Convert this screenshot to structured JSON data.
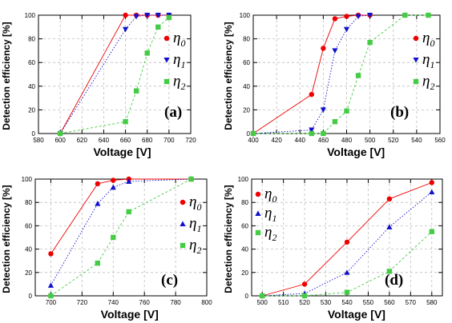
{
  "chart_data": [
    {
      "type": "line",
      "panel_label": "(a)",
      "xlabel": "Voltage  [V]",
      "ylabel": "Detection efficiency  [%]",
      "xlim": [
        580,
        720
      ],
      "ylim": [
        0,
        100
      ],
      "xticks": [
        "580",
        "600",
        "620",
        "640",
        "660",
        "680",
        "700",
        "720"
      ],
      "yticks": [
        "0",
        "20",
        "40",
        "60",
        "80",
        "100"
      ],
      "legend": {
        "position": "right",
        "entries": [
          {
            "symbol": "η",
            "sub": "0"
          },
          {
            "symbol": "η",
            "sub": "1"
          },
          {
            "symbol": "η",
            "sub": "2"
          }
        ]
      },
      "series": [
        {
          "color": "#ee0000",
          "marker": "circle",
          "line": "solid",
          "x": [
            600,
            660,
            670,
            680,
            690,
            700
          ],
          "y": [
            0,
            100,
            100,
            100,
            100,
            100
          ]
        },
        {
          "color": "#1111cc",
          "marker": "triangle-down",
          "line": "dotted",
          "x": [
            600,
            660,
            670,
            680,
            690,
            700
          ],
          "y": [
            0,
            88,
            99,
            100,
            100,
            100
          ]
        },
        {
          "color": "#44cc44",
          "marker": "square",
          "line": "dashed",
          "x": [
            600,
            660,
            670,
            680,
            690,
            700
          ],
          "y": [
            0,
            10,
            36,
            68,
            90,
            98
          ]
        }
      ]
    },
    {
      "type": "line",
      "panel_label": "(b)",
      "xlabel": "Voltage  [V]",
      "ylabel": "Detection efficiency  [%]",
      "xlim": [
        400,
        560
      ],
      "ylim": [
        0,
        100
      ],
      "xticks": [
        "400",
        "420",
        "440",
        "460",
        "480",
        "500",
        "520",
        "540",
        "560"
      ],
      "yticks": [
        "0",
        "20",
        "40",
        "60",
        "80",
        "100"
      ],
      "legend": {
        "position": "right",
        "entries": [
          {
            "symbol": "η",
            "sub": "0"
          },
          {
            "symbol": "η",
            "sub": "1"
          },
          {
            "symbol": "η",
            "sub": "2"
          }
        ]
      },
      "series": [
        {
          "color": "#ee0000",
          "marker": "circle",
          "line": "solid",
          "x": [
            400,
            450,
            460,
            470,
            480,
            490,
            500
          ],
          "y": [
            0,
            33,
            72,
            97,
            99,
            100,
            100
          ]
        },
        {
          "color": "#1111cc",
          "marker": "triangle-down",
          "line": "dotted",
          "x": [
            400,
            450,
            460,
            470,
            480,
            490,
            500
          ],
          "y": [
            0,
            3,
            20,
            70,
            88,
            99,
            100
          ]
        },
        {
          "color": "#44cc44",
          "marker": "square",
          "line": "dashed",
          "x": [
            400,
            450,
            460,
            470,
            480,
            490,
            500,
            530,
            550
          ],
          "y": [
            0,
            0,
            0,
            10,
            19,
            49,
            77,
            100,
            100
          ]
        }
      ]
    },
    {
      "type": "line",
      "panel_label": "(c)",
      "xlabel": "Voltage  [V]",
      "ylabel": "Detection efficiency  [%]",
      "xlim": [
        690,
        800
      ],
      "ylim": [
        0,
        100
      ],
      "xticks": [
        "700",
        "720",
        "740",
        "760",
        "780",
        "800"
      ],
      "yticks": [
        "0",
        "20",
        "40",
        "60",
        "80",
        "100"
      ],
      "legend": {
        "position": "right",
        "entries": [
          {
            "symbol": "η",
            "sub": "0"
          },
          {
            "symbol": "η",
            "sub": "1"
          },
          {
            "symbol": "η",
            "sub": "2"
          }
        ]
      },
      "series": [
        {
          "color": "#ee0000",
          "marker": "circle",
          "line": "solid",
          "x": [
            700,
            730,
            740,
            750,
            790
          ],
          "y": [
            36,
            96,
            99,
            100,
            100
          ]
        },
        {
          "color": "#1111cc",
          "marker": "triangle-up",
          "line": "dotted",
          "x": [
            700,
            730,
            740,
            750,
            790
          ],
          "y": [
            9,
            79,
            93,
            98,
            100
          ]
        },
        {
          "color": "#44cc44",
          "marker": "square",
          "line": "dashed",
          "x": [
            700,
            730,
            740,
            750,
            790
          ],
          "y": [
            0,
            28,
            50,
            72,
            100
          ]
        }
      ]
    },
    {
      "type": "line",
      "panel_label": "(d)",
      "xlabel": "Voltage  [V]",
      "ylabel": "Detection efficiency  [%]",
      "xlim": [
        495,
        585
      ],
      "ylim": [
        0,
        100
      ],
      "xticks": [
        "500",
        "510",
        "520",
        "530",
        "540",
        "550",
        "560",
        "570",
        "580"
      ],
      "yticks": [
        "0",
        "20",
        "40",
        "60",
        "80",
        "100"
      ],
      "legend": {
        "position": "left",
        "entries": [
          {
            "symbol": "η",
            "sub": "0"
          },
          {
            "symbol": "η",
            "sub": "1"
          },
          {
            "symbol": "η",
            "sub": "2"
          }
        ]
      },
      "series": [
        {
          "color": "#ee0000",
          "marker": "circle",
          "line": "solid",
          "x": [
            500,
            520,
            540,
            560,
            580
          ],
          "y": [
            0,
            10,
            46,
            83,
            97
          ]
        },
        {
          "color": "#1111cc",
          "marker": "triangle-up",
          "line": "dotted",
          "x": [
            500,
            520,
            540,
            560,
            580
          ],
          "y": [
            0,
            2,
            20,
            59,
            89
          ]
        },
        {
          "color": "#44cc44",
          "marker": "square",
          "line": "dashed",
          "x": [
            500,
            520,
            540,
            560,
            580
          ],
          "y": [
            0,
            0,
            3,
            21,
            55
          ]
        }
      ]
    }
  ]
}
